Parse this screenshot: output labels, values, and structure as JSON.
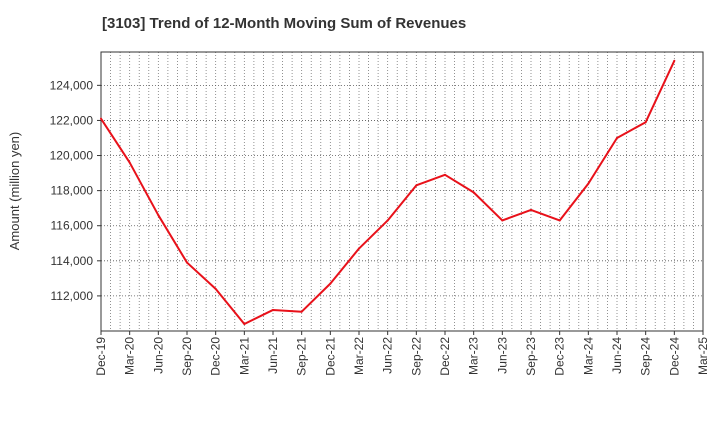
{
  "chart_data": {
    "type": "line",
    "title": "[3103]  Trend of 12-Month Moving Sum of Revenues",
    "xlabel": "",
    "ylabel": "Amount (million yen)",
    "x": [
      "Dec-19",
      "Mar-20",
      "Jun-20",
      "Sep-20",
      "Dec-20",
      "Mar-21",
      "Jun-21",
      "Sep-21",
      "Dec-21",
      "Mar-22",
      "Jun-22",
      "Sep-22",
      "Dec-22",
      "Mar-23",
      "Jun-23",
      "Sep-23",
      "Dec-23",
      "Mar-24",
      "Jun-24",
      "Sep-24",
      "Dec-24",
      "Mar-25"
    ],
    "series": [
      {
        "name": "",
        "color": "#e8111a",
        "values": [
          122100,
          119600,
          116600,
          113900,
          112400,
          110400,
          111200,
          111100,
          112700,
          114700,
          116300,
          118300,
          118900,
          117900,
          116300,
          116900,
          116300,
          118400,
          121000,
          121900,
          125400,
          null
        ]
      }
    ],
    "ylim": [
      110000,
      125900
    ],
    "yticks": [
      112000,
      114000,
      116000,
      118000,
      120000,
      122000,
      124000
    ],
    "ytick_labels": [
      "112,000",
      "114,000",
      "116,000",
      "118,000",
      "120,000",
      "122,000",
      "124,000"
    ],
    "grid": true,
    "legend": "none"
  }
}
